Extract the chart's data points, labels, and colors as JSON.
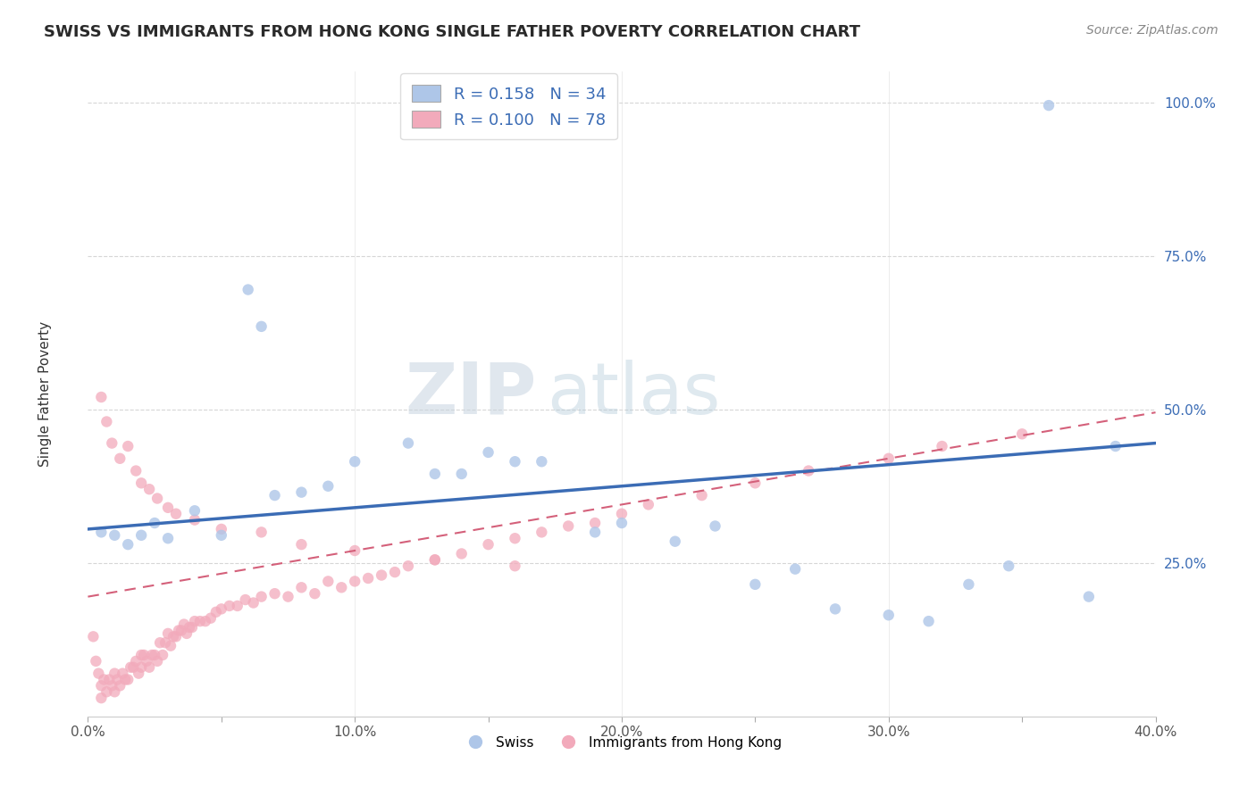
{
  "title": "SWISS VS IMMIGRANTS FROM HONG KONG SINGLE FATHER POVERTY CORRELATION CHART",
  "source": "Source: ZipAtlas.com",
  "ylabel": "Single Father Poverty",
  "xlim": [
    0.0,
    0.4
  ],
  "ylim": [
    0.0,
    1.05
  ],
  "xtick_labels": [
    "0.0%",
    "",
    "10.0%",
    "",
    "20.0%",
    "",
    "30.0%",
    "",
    "40.0%"
  ],
  "xtick_vals": [
    0.0,
    0.05,
    0.1,
    0.15,
    0.2,
    0.25,
    0.3,
    0.35,
    0.4
  ],
  "ytick_labels": [
    "25.0%",
    "50.0%",
    "75.0%",
    "100.0%"
  ],
  "ytick_vals": [
    0.25,
    0.5,
    0.75,
    1.0
  ],
  "legend_labels": [
    "Swiss",
    "Immigrants from Hong Kong"
  ],
  "swiss_color": "#aec6e8",
  "hk_color": "#f2aabb",
  "swiss_line_color": "#3b6cb5",
  "hk_line_color": "#d4607a",
  "swiss_R": 0.158,
  "swiss_N": 34,
  "hk_R": 0.1,
  "hk_N": 78,
  "watermark_zip": "ZIP",
  "watermark_atlas": "atlas",
  "swiss_x": [
    0.005,
    0.01,
    0.015,
    0.02,
    0.025,
    0.03,
    0.04,
    0.05,
    0.06,
    0.065,
    0.07,
    0.08,
    0.09,
    0.1,
    0.12,
    0.13,
    0.14,
    0.15,
    0.16,
    0.17,
    0.19,
    0.2,
    0.22,
    0.235,
    0.25,
    0.265,
    0.28,
    0.3,
    0.315,
    0.33,
    0.345,
    0.36,
    0.375,
    0.385
  ],
  "swiss_y": [
    0.3,
    0.295,
    0.28,
    0.295,
    0.315,
    0.29,
    0.335,
    0.295,
    0.695,
    0.635,
    0.36,
    0.365,
    0.375,
    0.415,
    0.445,
    0.395,
    0.395,
    0.43,
    0.415,
    0.415,
    0.3,
    0.315,
    0.285,
    0.31,
    0.215,
    0.24,
    0.175,
    0.165,
    0.155,
    0.215,
    0.245,
    0.995,
    0.195,
    0.44
  ],
  "hk_x": [
    0.002,
    0.003,
    0.004,
    0.005,
    0.005,
    0.006,
    0.007,
    0.008,
    0.009,
    0.01,
    0.01,
    0.011,
    0.012,
    0.013,
    0.014,
    0.015,
    0.016,
    0.017,
    0.018,
    0.019,
    0.02,
    0.02,
    0.021,
    0.022,
    0.023,
    0.024,
    0.025,
    0.026,
    0.027,
    0.028,
    0.029,
    0.03,
    0.031,
    0.032,
    0.033,
    0.034,
    0.035,
    0.036,
    0.037,
    0.038,
    0.039,
    0.04,
    0.042,
    0.044,
    0.046,
    0.048,
    0.05,
    0.053,
    0.056,
    0.059,
    0.062,
    0.065,
    0.07,
    0.075,
    0.08,
    0.085,
    0.09,
    0.095,
    0.1,
    0.105,
    0.11,
    0.115,
    0.12,
    0.13,
    0.14,
    0.15,
    0.16,
    0.17,
    0.18,
    0.19,
    0.2,
    0.21,
    0.23,
    0.25,
    0.27,
    0.3,
    0.32,
    0.35
  ],
  "hk_y": [
    0.13,
    0.09,
    0.07,
    0.05,
    0.03,
    0.06,
    0.04,
    0.06,
    0.05,
    0.07,
    0.04,
    0.06,
    0.05,
    0.07,
    0.06,
    0.06,
    0.08,
    0.08,
    0.09,
    0.07,
    0.1,
    0.08,
    0.1,
    0.09,
    0.08,
    0.1,
    0.1,
    0.09,
    0.12,
    0.1,
    0.12,
    0.135,
    0.115,
    0.13,
    0.13,
    0.14,
    0.14,
    0.15,
    0.135,
    0.145,
    0.145,
    0.155,
    0.155,
    0.155,
    0.16,
    0.17,
    0.175,
    0.18,
    0.18,
    0.19,
    0.185,
    0.195,
    0.2,
    0.195,
    0.21,
    0.2,
    0.22,
    0.21,
    0.22,
    0.225,
    0.23,
    0.235,
    0.245,
    0.255,
    0.265,
    0.28,
    0.29,
    0.3,
    0.31,
    0.315,
    0.33,
    0.345,
    0.36,
    0.38,
    0.4,
    0.42,
    0.44,
    0.46
  ],
  "hk_extra_x": [
    0.005,
    0.007,
    0.009,
    0.012,
    0.015,
    0.018,
    0.02,
    0.023,
    0.026,
    0.03,
    0.033,
    0.04,
    0.05,
    0.065,
    0.08,
    0.1,
    0.13,
    0.16
  ],
  "hk_extra_y": [
    0.52,
    0.48,
    0.445,
    0.42,
    0.44,
    0.4,
    0.38,
    0.37,
    0.355,
    0.34,
    0.33,
    0.32,
    0.305,
    0.3,
    0.28,
    0.27,
    0.255,
    0.245
  ]
}
